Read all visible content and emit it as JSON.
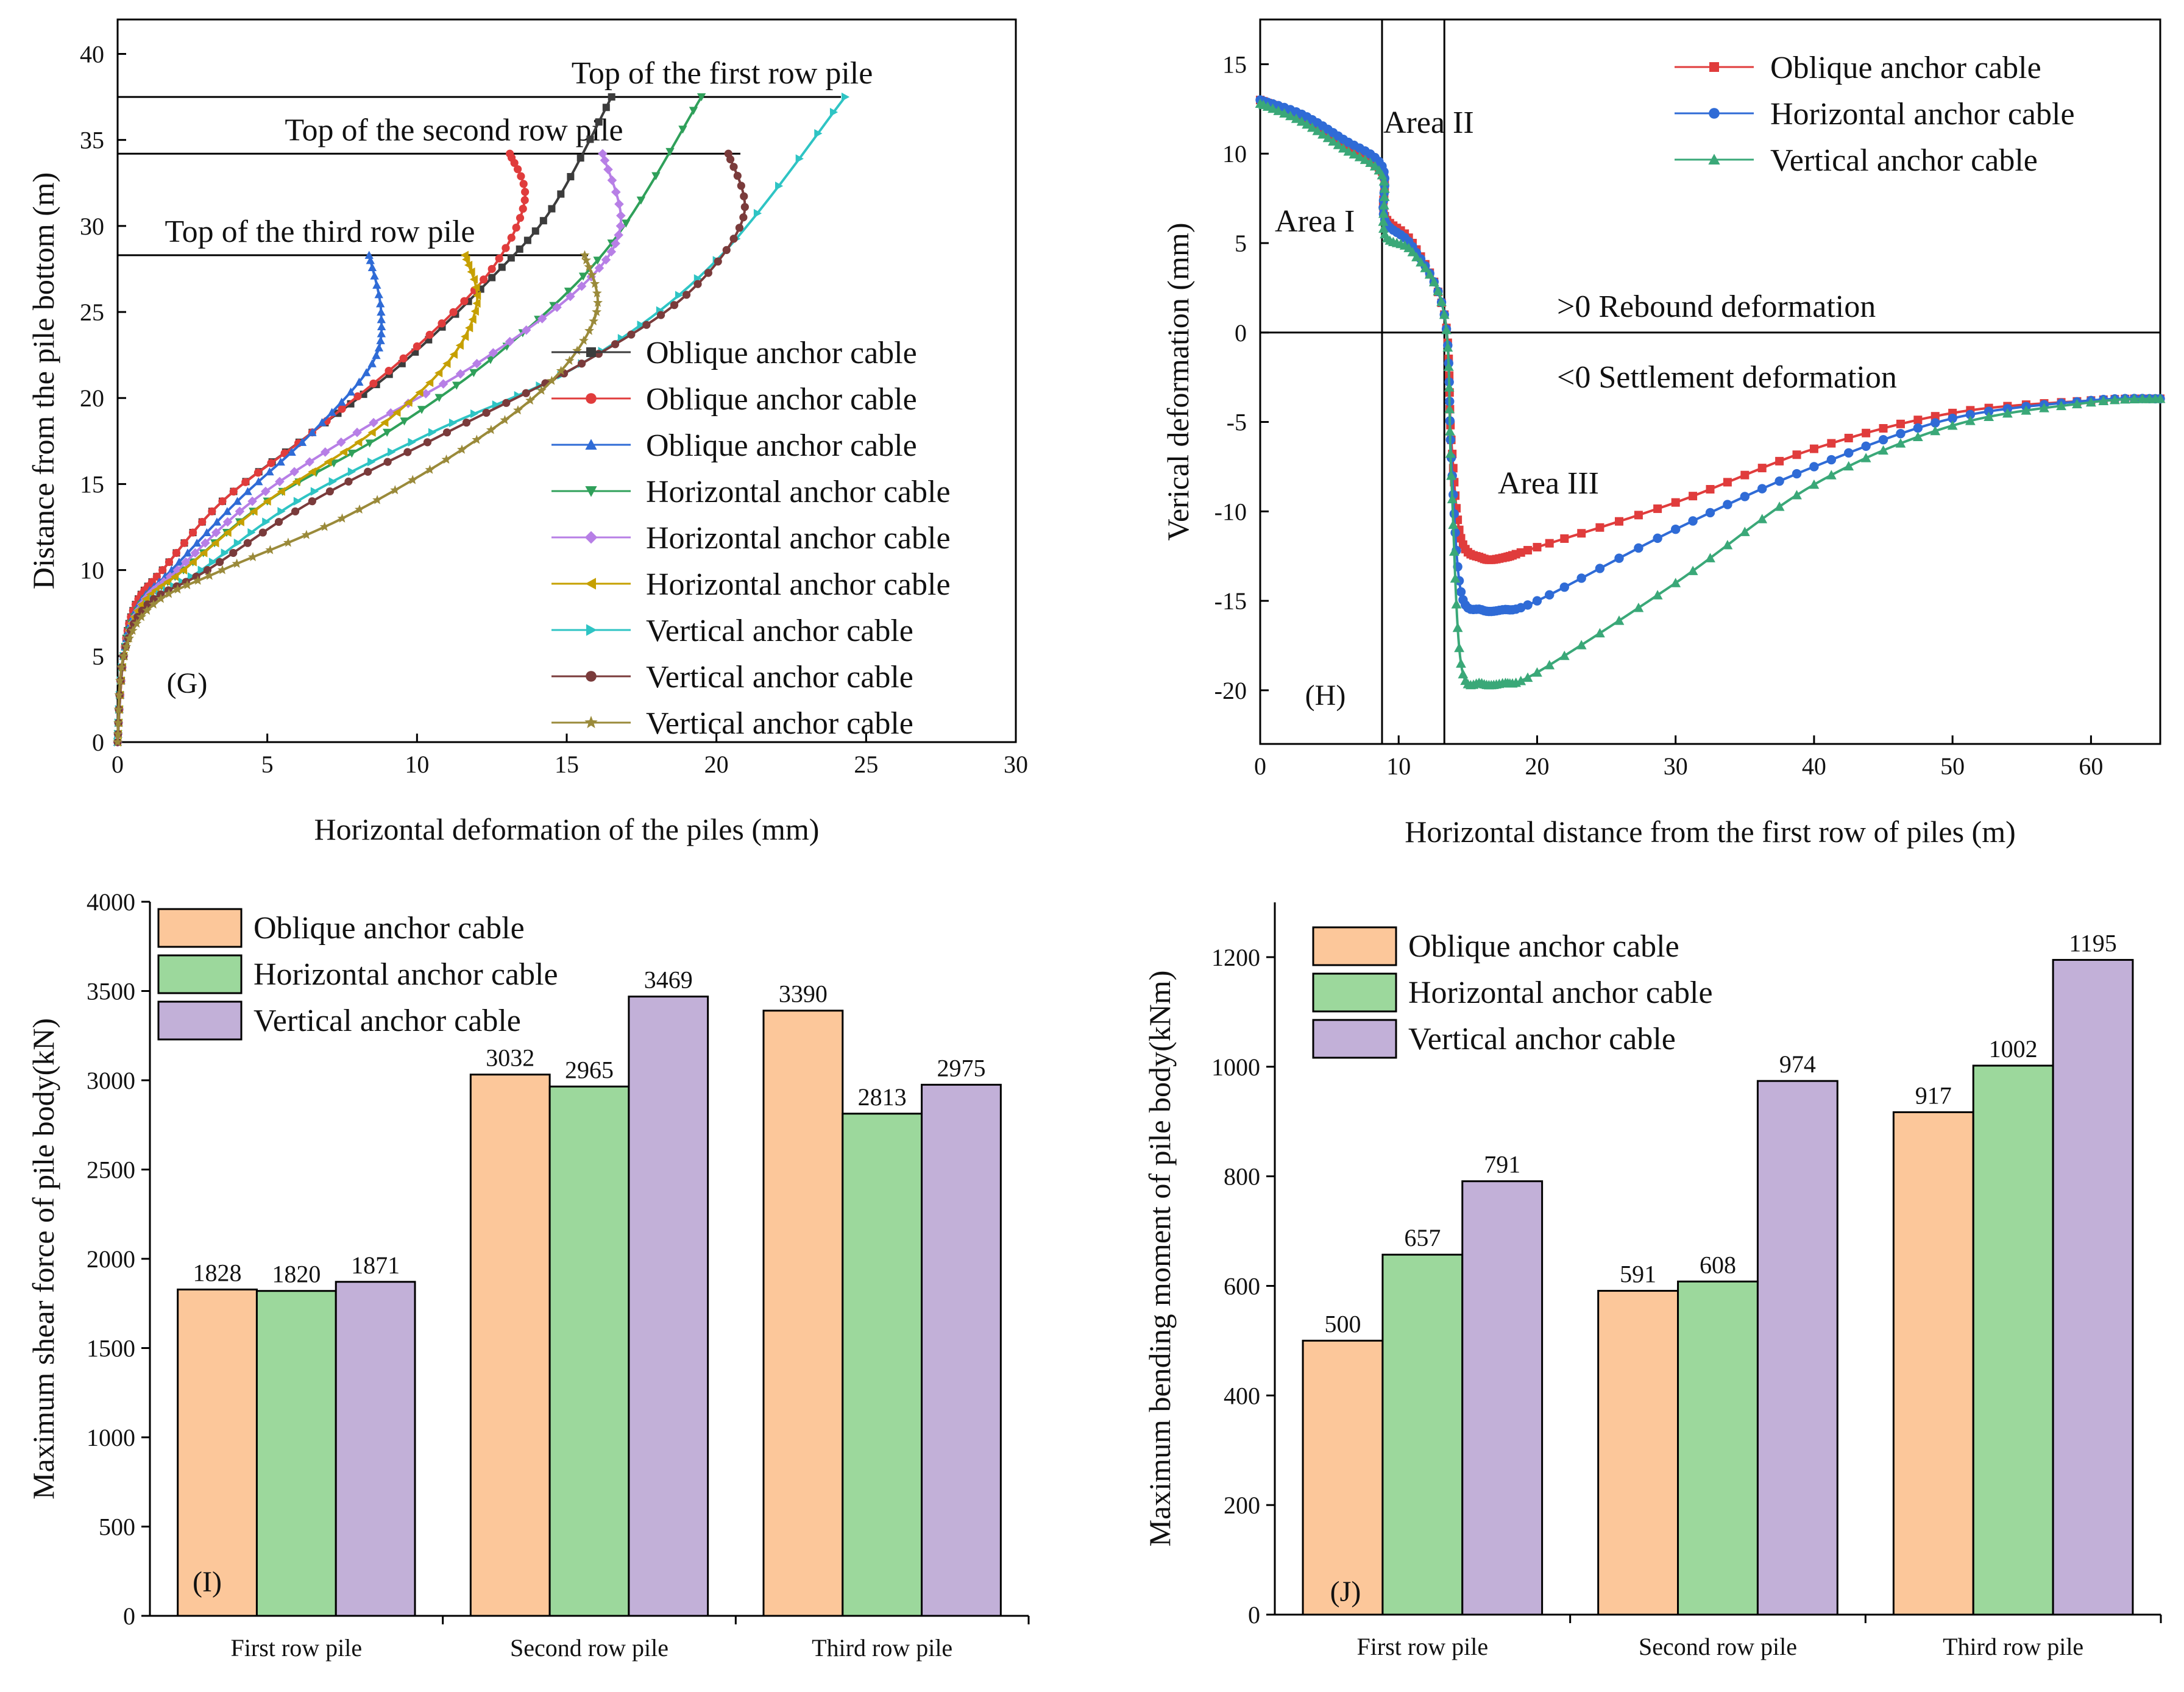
{
  "chart_data": [
    {
      "panel": "(G)",
      "type": "line",
      "xlabel": "Horizontal deformation of the piles (mm)",
      "ylabel": "Distance from the pile bottom (m)",
      "xlim": [
        0,
        30
      ],
      "ylim": [
        0,
        42
      ],
      "xticks": [
        "0",
        "5",
        "10",
        "15",
        "20",
        "25",
        "30"
      ],
      "yticks": [
        "0",
        "5",
        "10",
        "15",
        "20",
        "25",
        "30",
        "35",
        "40"
      ],
      "reference_lines": [
        {
          "label": "Top of  the first row pile",
          "y": 37.5
        },
        {
          "label": "Top of  the second row pile",
          "y": 34.2
        },
        {
          "label": "Top of  the third row pile",
          "y": 28.3
        }
      ],
      "series": [
        {
          "name": "Oblique anchor cable",
          "color": "#3c3c3c",
          "marker": "square",
          "x": [
            0,
            0.2,
            0.6,
            1.5,
            3.5,
            6.5,
            9.5,
            12.5,
            14.5,
            16.5
          ],
          "y": [
            0,
            5,
            8,
            10,
            14,
            18,
            22,
            27,
            31,
            37.5
          ]
        },
        {
          "name": "Oblique anchor cable",
          "color": "#e03c3c",
          "marker": "circle",
          "x": [
            0,
            0.2,
            0.6,
            1.5,
            3.5,
            6.5,
            10,
            12.5,
            13.6,
            13.1
          ],
          "y": [
            0,
            5,
            8,
            10,
            14,
            18,
            23,
            27.5,
            31.5,
            34.2
          ]
        },
        {
          "name": "Oblique anchor cable",
          "color": "#2f6bd6",
          "marker": "triangle-up",
          "x": [
            0,
            0.2,
            0.7,
            1.8,
            4,
            6.5,
            8.5,
            8.8,
            8.4
          ],
          "y": [
            0,
            5,
            8,
            10,
            14,
            18,
            22,
            25,
            28.3
          ]
        },
        {
          "name": "Horizontal anchor cable",
          "color": "#2fa05a",
          "marker": "triangle-down",
          "x": [
            0,
            0.2,
            0.8,
            2.2,
            5,
            9,
            13,
            16.5,
            19.5
          ],
          "y": [
            0,
            5,
            8,
            10,
            14,
            18,
            23,
            29,
            37.5
          ]
        },
        {
          "name": "Horizontal anchor cable",
          "color": "#b77fe6",
          "marker": "diamond",
          "x": [
            0,
            0.2,
            0.8,
            2,
            4.5,
            8,
            12,
            15.5,
            16.8,
            16.2
          ],
          "y": [
            0,
            5,
            8,
            10,
            14,
            18,
            22,
            26.5,
            30,
            34.2
          ]
        },
        {
          "name": "Horizontal anchor cable",
          "color": "#c6a000",
          "marker": "triangle-left",
          "x": [
            0,
            0.2,
            0.8,
            2.2,
            5,
            8.5,
            11,
            12,
            11.6
          ],
          "y": [
            0,
            5,
            8,
            10,
            14,
            18,
            22,
            25.5,
            28.3
          ]
        },
        {
          "name": "Vertical anchor cable",
          "color": "#2ec4c4",
          "marker": "triangle-right",
          "x": [
            0,
            0.2,
            1,
            2.8,
            6,
            10.5,
            15.5,
            20,
            24.3
          ],
          "y": [
            0,
            5,
            8,
            10,
            14,
            18,
            22,
            28,
            37.5
          ]
        },
        {
          "name": "Vertical anchor cable",
          "color": "#7a3b3b",
          "marker": "circle",
          "x": [
            0,
            0.2,
            1,
            3,
            6.5,
            11,
            15.5,
            19,
            20.9,
            20.4
          ],
          "y": [
            0,
            5,
            8,
            10,
            14,
            18,
            22,
            26,
            30.5,
            34.2
          ]
        },
        {
          "name": "Vertical anchor cable",
          "color": "#9a8a3a",
          "marker": "star",
          "x": [
            0,
            0.2,
            1.2,
            3.5,
            7.5,
            11.5,
            14.5,
            16,
            15.6
          ],
          "y": [
            0,
            5,
            8,
            10,
            13,
            17,
            21,
            25,
            28.3
          ]
        }
      ]
    },
    {
      "panel": "(H)",
      "type": "line",
      "xlabel": "Horizontal distance from the first row of piles (m)",
      "ylabel": "Verical deformation (mm)",
      "xlim": [
        0,
        65
      ],
      "ylim": [
        -23,
        17.5
      ],
      "xticks": [
        "0",
        "10",
        "20",
        "30",
        "40",
        "50",
        "60"
      ],
      "yticks": [
        "15",
        "10",
        "5",
        "0",
        "-5",
        "-10",
        "-15",
        "-20"
      ],
      "reference_lines_x": [
        8.8,
        13.3
      ],
      "reference_line_y": 0,
      "annotations": [
        ">0 Rebound deformation",
        "<0 Settlement deformation",
        "Area I",
        "Area II",
        "Area III"
      ],
      "series": [
        {
          "name": "Oblique anchor cable",
          "color": "#e03c3c",
          "marker": "square",
          "x": [
            0,
            3,
            6,
            8.8,
            9,
            11,
            13.3,
            13.8,
            14.5,
            16,
            17.5,
            20,
            30,
            40,
            50,
            60,
            65
          ],
          "y": [
            13,
            12,
            10.5,
            9,
            6.5,
            5,
            1,
            -6,
            -11.5,
            -12.6,
            -12.6,
            -12,
            -9.5,
            -6.5,
            -4.5,
            -3.8,
            -3.7
          ]
        },
        {
          "name": "Horizontal anchor cable",
          "color": "#2f6bd6",
          "marker": "circle",
          "x": [
            0,
            3,
            6,
            8.8,
            9,
            11,
            13.3,
            13.8,
            14.5,
            16,
            17.5,
            20,
            30,
            40,
            50,
            60,
            65
          ],
          "y": [
            13,
            12.2,
            10.8,
            9.3,
            6.3,
            4.8,
            1,
            -7,
            -14.5,
            -15.5,
            -15.5,
            -15,
            -11,
            -7.5,
            -4.8,
            -3.8,
            -3.7
          ]
        },
        {
          "name": "Vertical anchor cable",
          "color": "#3aa878",
          "marker": "triangle-up",
          "x": [
            0,
            3,
            6,
            8.8,
            9,
            11,
            13.3,
            13.8,
            14.5,
            16,
            17.5,
            20,
            30,
            40,
            50,
            60,
            65
          ],
          "y": [
            12.8,
            11.8,
            10.3,
            8.8,
            5.5,
            4.5,
            1,
            -8,
            -18.5,
            -19.6,
            -19.6,
            -19,
            -14,
            -8.5,
            -5.2,
            -3.9,
            -3.7
          ]
        }
      ]
    },
    {
      "panel": "(I)",
      "type": "bar",
      "ylabel": "Maximum shear force of pile body(kN)",
      "ylim": [
        0,
        4000
      ],
      "yticks": [
        "0",
        "500",
        "1000",
        "1500",
        "2000",
        "2500",
        "3000",
        "3500",
        "4000"
      ],
      "categories": [
        "First row pile",
        "Second row pile",
        "Third row pile"
      ],
      "series": [
        {
          "name": "Oblique anchor cable",
          "color": "#fcc79a",
          "values": [
            1828,
            3032,
            3390
          ]
        },
        {
          "name": "Horizontal anchor cable",
          "color": "#9cd89c",
          "values": [
            1820,
            2965,
            2813
          ]
        },
        {
          "name": "Vertical anchor cable",
          "color": "#c2b0d8",
          "values": [
            1871,
            3469,
            2975
          ]
        }
      ]
    },
    {
      "panel": "(J)",
      "type": "bar",
      "ylabel": "Maximum bending moment of pile body(kNm)",
      "ylim": [
        0,
        1300
      ],
      "yticks": [
        "0",
        "200",
        "400",
        "600",
        "800",
        "1000",
        "1200"
      ],
      "categories": [
        "First row pile",
        "Second row pile",
        "Third row pile"
      ],
      "series": [
        {
          "name": "Oblique anchor cable",
          "color": "#fcc79a",
          "values": [
            500,
            591,
            917
          ]
        },
        {
          "name": "Horizontal anchor cable",
          "color": "#9cd89c",
          "values": [
            657,
            608,
            1002
          ]
        },
        {
          "name": "Vertical anchor cable",
          "color": "#c2b0d8",
          "values": [
            791,
            974,
            1195
          ]
        }
      ]
    }
  ]
}
